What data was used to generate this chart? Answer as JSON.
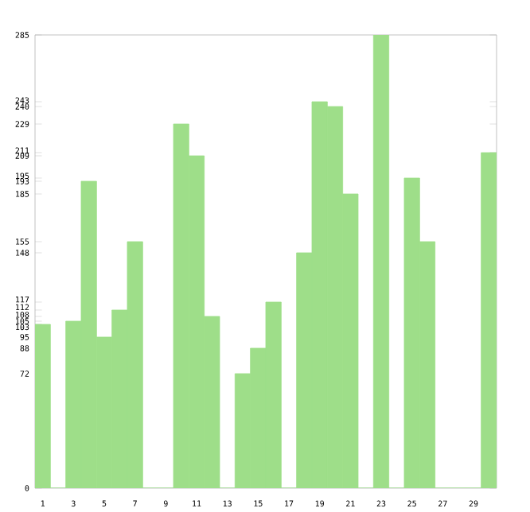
{
  "chart_data": {
    "type": "bar",
    "categories": [
      "1",
      null,
      "3",
      null,
      "5",
      null,
      "7",
      null,
      "9",
      null,
      "11",
      null,
      "13",
      null,
      "15",
      null,
      "17",
      null,
      "19",
      null,
      "21",
      null,
      "23",
      null,
      "25",
      null,
      "27",
      null,
      "29",
      null
    ],
    "values": [
      103,
      0,
      105,
      193,
      95,
      112,
      155,
      0,
      0,
      229,
      209,
      108,
      0,
      72,
      88,
      117,
      0,
      148,
      243,
      240,
      185,
      0,
      285,
      0,
      195,
      155,
      0,
      0,
      0,
      211
    ],
    "color": "#9ede89",
    "ylim": [
      0,
      285
    ],
    "yticks": [
      0,
      72,
      88,
      95,
      103,
      105,
      108,
      112,
      117,
      148,
      155,
      185,
      193,
      195,
      209,
      211,
      229,
      240,
      243,
      285
    ],
    "grid": false
  }
}
